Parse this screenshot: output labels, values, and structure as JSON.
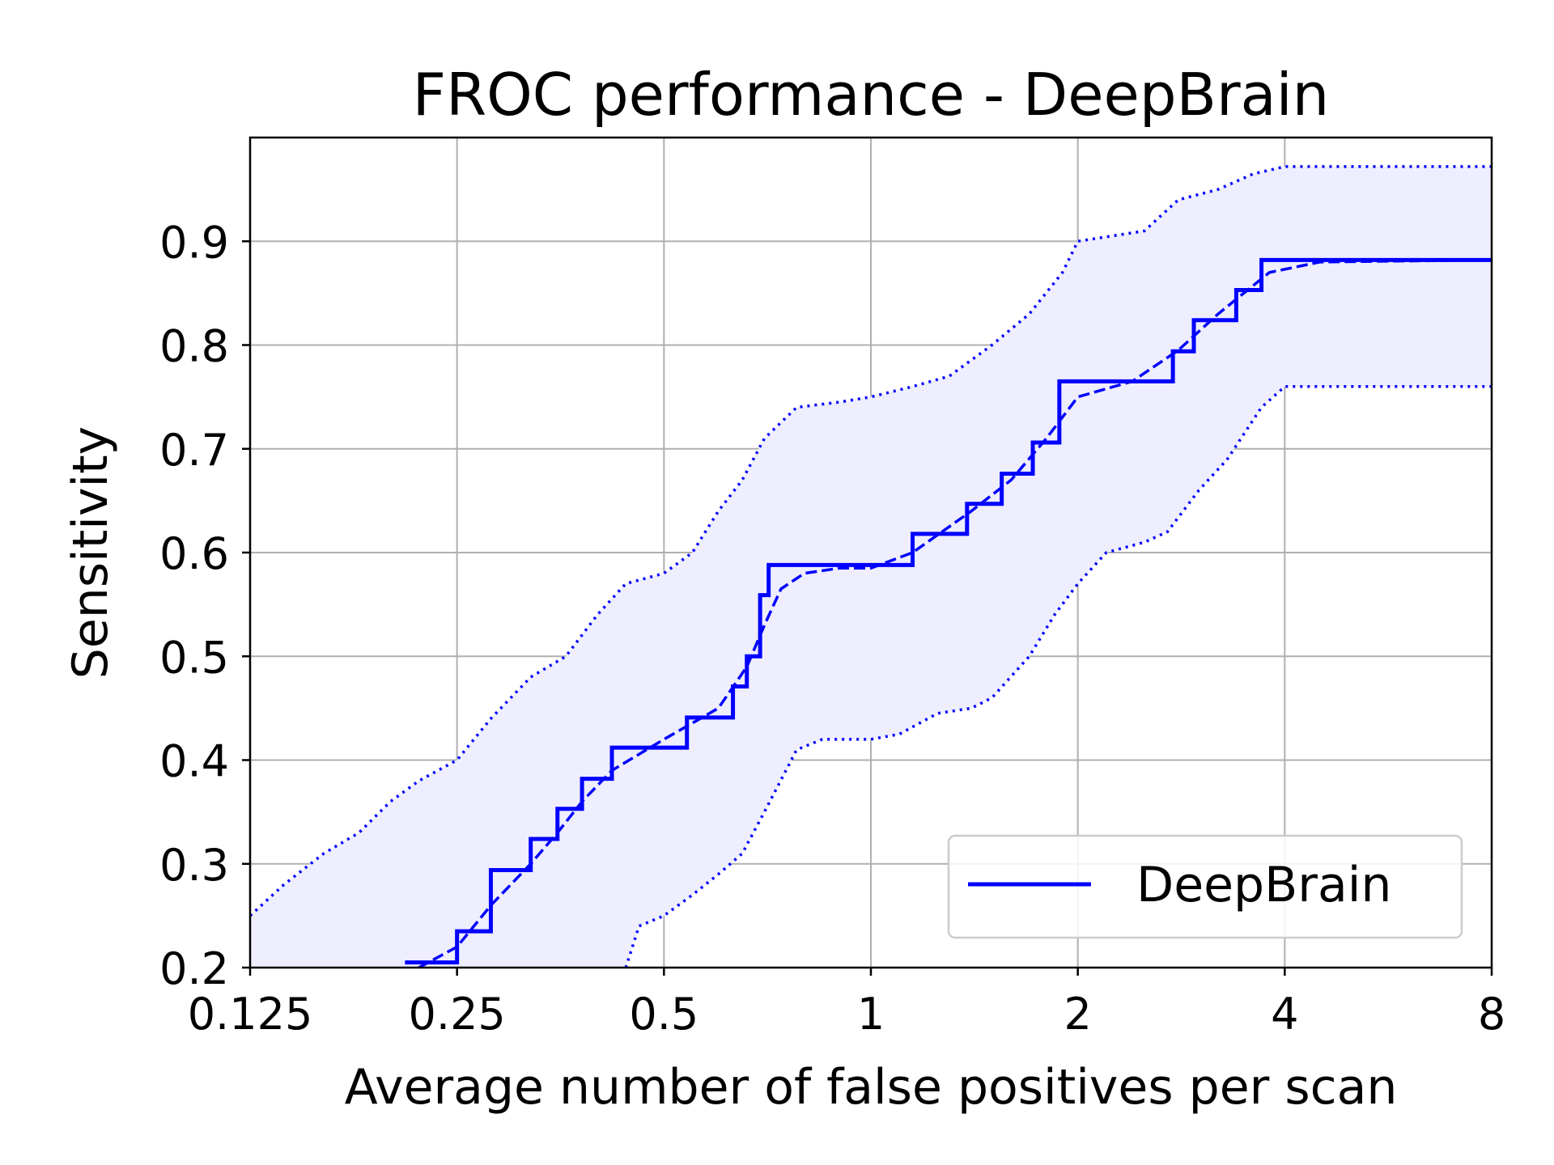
{
  "chart_data": {
    "type": "line",
    "title": "FROC performance - DeepBrain",
    "xlabel": "Average number of false positives per scan",
    "ylabel": "Sensitivity",
    "x_scale": "log2",
    "xlim": [
      0.125,
      8
    ],
    "ylim": [
      0.2,
      1.0
    ],
    "x_ticks": [
      0.125,
      0.25,
      0.5,
      1,
      2,
      4,
      8
    ],
    "x_tick_labels": [
      "0.125",
      "0.25",
      "0.5",
      "1",
      "2",
      "4",
      "8"
    ],
    "y_ticks": [
      0.2,
      0.3,
      0.4,
      0.5,
      0.6,
      0.7,
      0.8,
      0.9
    ],
    "y_tick_labels": [
      "0.2",
      "0.3",
      "0.4",
      "0.5",
      "0.6",
      "0.7",
      "0.8",
      "0.9"
    ],
    "grid": true,
    "legend_position": "lower-right",
    "colors": {
      "series": "#0000ff",
      "band": "#eeeeff",
      "grid": "#b0b0b0"
    },
    "series": [
      {
        "name": "DeepBrain",
        "style": "solid-step",
        "x": [
          0.21,
          0.25,
          0.28,
          0.32,
          0.35,
          0.38,
          0.42,
          0.54,
          0.63,
          0.66,
          0.69,
          0.71,
          1.15,
          1.38,
          1.55,
          1.72,
          1.88,
          2.75,
          2.95,
          3.4,
          3.7,
          8
        ],
        "y": [
          0.205,
          0.235,
          0.294,
          0.324,
          0.353,
          0.382,
          0.412,
          0.441,
          0.471,
          0.5,
          0.559,
          0.588,
          0.618,
          0.647,
          0.676,
          0.706,
          0.765,
          0.794,
          0.824,
          0.853,
          0.882,
          0.882
        ]
      },
      {
        "style": "dashed",
        "x": [
          0.22,
          0.25,
          0.28,
          0.32,
          0.35,
          0.38,
          0.42,
          0.5,
          0.6,
          0.66,
          0.7,
          0.74,
          0.8,
          0.9,
          1.0,
          1.15,
          1.4,
          1.6,
          1.8,
          2.0,
          2.4,
          2.8,
          3.2,
          3.8,
          4.5,
          8
        ],
        "y": [
          0.2,
          0.22,
          0.26,
          0.3,
          0.33,
          0.36,
          0.39,
          0.42,
          0.45,
          0.49,
          0.53,
          0.565,
          0.58,
          0.585,
          0.585,
          0.6,
          0.64,
          0.67,
          0.71,
          0.75,
          0.765,
          0.795,
          0.83,
          0.87,
          0.88,
          0.882
        ]
      },
      {
        "style": "dotted",
        "x": [
          0.125,
          0.14,
          0.16,
          0.18,
          0.2,
          0.22,
          0.25,
          0.28,
          0.32,
          0.36,
          0.4,
          0.44,
          0.5,
          0.55,
          0.6,
          0.65,
          0.7,
          0.78,
          0.9,
          1.0,
          1.15,
          1.3,
          1.5,
          1.7,
          1.9,
          2.0,
          2.5,
          2.8,
          3.2,
          3.6,
          4.0,
          8
        ],
        "y": [
          0.25,
          0.28,
          0.31,
          0.33,
          0.36,
          0.38,
          0.4,
          0.44,
          0.48,
          0.5,
          0.54,
          0.57,
          0.58,
          0.6,
          0.64,
          0.67,
          0.71,
          0.74,
          0.745,
          0.75,
          0.76,
          0.77,
          0.8,
          0.83,
          0.87,
          0.9,
          0.91,
          0.94,
          0.95,
          0.965,
          0.972,
          0.972
        ]
      },
      {
        "style": "dotted",
        "x": [
          0.44,
          0.46,
          0.5,
          0.55,
          0.6,
          0.65,
          0.7,
          0.78,
          0.85,
          1.0,
          1.1,
          1.25,
          1.4,
          1.5,
          1.7,
          1.85,
          2.0,
          2.2,
          2.5,
          2.7,
          3.0,
          3.3,
          3.7,
          4.0,
          8
        ],
        "y": [
          0.2,
          0.24,
          0.25,
          0.27,
          0.29,
          0.31,
          0.35,
          0.41,
          0.42,
          0.42,
          0.425,
          0.445,
          0.45,
          0.46,
          0.5,
          0.54,
          0.57,
          0.6,
          0.61,
          0.62,
          0.66,
          0.69,
          0.74,
          0.76,
          0.76
        ]
      }
    ],
    "band": {
      "from_series": 3,
      "to_series": 2
    }
  }
}
